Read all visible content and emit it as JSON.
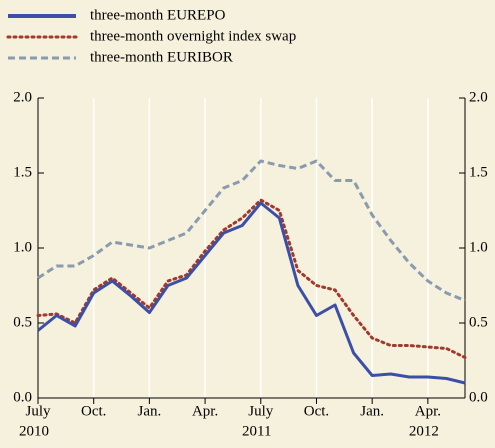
{
  "chart_data": {
    "type": "line",
    "x": [
      "2010-07",
      "2010-08",
      "2010-09",
      "2010-10",
      "2010-11",
      "2010-12",
      "2011-01",
      "2011-02",
      "2011-03",
      "2011-04",
      "2011-05",
      "2011-06",
      "2011-07",
      "2011-08",
      "2011-09",
      "2011-10",
      "2011-11",
      "2011-12",
      "2012-01",
      "2012-02",
      "2012-03",
      "2012-04",
      "2012-05",
      "2012-06"
    ],
    "series": [
      {
        "name": "three-month EUREPO",
        "color": "#3b4fa8",
        "style": "solid",
        "values": [
          0.45,
          0.55,
          0.48,
          0.7,
          0.78,
          0.68,
          0.57,
          0.75,
          0.8,
          0.95,
          1.1,
          1.15,
          1.3,
          1.2,
          0.75,
          0.55,
          0.62,
          0.3,
          0.15,
          0.16,
          0.14,
          0.14,
          0.13,
          0.1
        ]
      },
      {
        "name": "three-month overnight index swap",
        "color": "#a0392e",
        "style": "dotted",
        "values": [
          0.55,
          0.56,
          0.5,
          0.72,
          0.8,
          0.7,
          0.6,
          0.78,
          0.82,
          0.98,
          1.12,
          1.2,
          1.32,
          1.25,
          0.85,
          0.75,
          0.72,
          0.55,
          0.4,
          0.35,
          0.35,
          0.34,
          0.33,
          0.27
        ]
      },
      {
        "name": "three-month EURIBOR",
        "color": "#8a9bb0",
        "style": "dashed",
        "values": [
          0.8,
          0.88,
          0.88,
          0.95,
          1.04,
          1.02,
          1.0,
          1.05,
          1.1,
          1.25,
          1.4,
          1.45,
          1.58,
          1.55,
          1.53,
          1.58,
          1.45,
          1.45,
          1.22,
          1.05,
          0.9,
          0.78,
          0.7,
          0.65
        ]
      }
    ],
    "xlim": [
      "2010-07",
      "2012-06"
    ],
    "xticks": [
      {
        "value": "2010-07",
        "label": "July"
      },
      {
        "value": "2010-10",
        "label": "Oct."
      },
      {
        "value": "2011-01",
        "label": "Jan."
      },
      {
        "value": "2011-04",
        "label": "Apr."
      },
      {
        "value": "2011-07",
        "label": "July"
      },
      {
        "value": "2011-10",
        "label": "Oct."
      },
      {
        "value": "2012-01",
        "label": "Jan."
      },
      {
        "value": "2012-04",
        "label": "Apr."
      }
    ],
    "year_labels": [
      {
        "value": "2010-07",
        "label": "2010"
      },
      {
        "value": "2011-07",
        "label": "2011"
      },
      {
        "value": "2012-04",
        "label": "2012"
      }
    ],
    "ylim": [
      0,
      2
    ],
    "yticks": [
      {
        "value": 0,
        "label": "0.0"
      },
      {
        "value": 0.5,
        "label": "0.5"
      },
      {
        "value": 1,
        "label": "1.0"
      },
      {
        "value": 1.5,
        "label": "1.5"
      },
      {
        "value": 2,
        "label": "2.0"
      }
    ],
    "grid": true
  }
}
